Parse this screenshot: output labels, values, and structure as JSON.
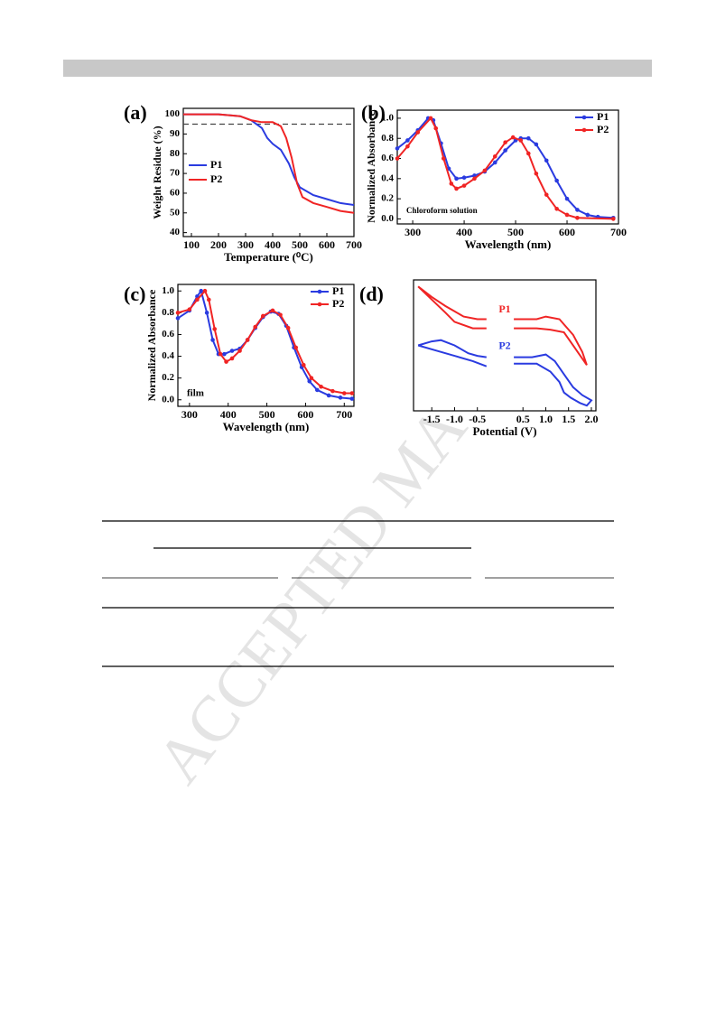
{
  "watermark": "ACCEPTED MA",
  "chart_data": [
    {
      "type": "line",
      "panel_label": "(a)",
      "xlabel": "Temperature (⁰C)",
      "ylabel": "Weight Residue (%)",
      "xlim": [
        70,
        700
      ],
      "xticks": [
        100,
        200,
        300,
        400,
        500,
        600,
        700
      ],
      "ylim": [
        38,
        103
      ],
      "yticks": [
        40,
        50,
        60,
        70,
        80,
        90,
        100
      ],
      "hline": 95,
      "legend": "center left",
      "markers": false,
      "series": [
        {
          "name": "P1",
          "color": "#2a3be0",
          "x": [
            70,
            200,
            280,
            320,
            360,
            380,
            400,
            430,
            460,
            480,
            500,
            550,
            600,
            650,
            700
          ],
          "values": [
            100,
            100,
            99,
            97,
            93,
            88,
            85,
            82,
            75,
            68,
            63,
            59,
            57,
            55,
            54
          ]
        },
        {
          "name": "P2",
          "color": "#f02424",
          "x": [
            70,
            200,
            280,
            320,
            360,
            400,
            430,
            450,
            470,
            490,
            510,
            550,
            600,
            650,
            700
          ],
          "values": [
            100,
            100,
            99,
            97,
            96,
            96,
            94,
            88,
            78,
            65,
            58,
            55,
            53,
            51,
            50
          ]
        }
      ]
    },
    {
      "type": "line",
      "panel_label": "(b)",
      "xlabel": "Wavelength (nm)",
      "ylabel": "Normalized Absorbance",
      "annotation": "Chloroform solution",
      "xlim": [
        270,
        700
      ],
      "xticks": [
        300,
        400,
        500,
        600,
        700
      ],
      "ylim": [
        -0.05,
        1.08
      ],
      "yticks": [
        {
          "value": 0,
          "label": "0.0"
        },
        0.2,
        0.4,
        0.6,
        0.8,
        {
          "value": 1,
          "label": "1.0"
        }
      ],
      "legend": "upper right",
      "markers": true,
      "series": [
        {
          "name": "P1",
          "color": "#2a3be0",
          "x": [
            270,
            290,
            310,
            330,
            340,
            355,
            370,
            385,
            400,
            420,
            440,
            460,
            480,
            500,
            510,
            525,
            540,
            560,
            580,
            600,
            620,
            640,
            660,
            690
          ],
          "values": [
            0.7,
            0.78,
            0.88,
            1.0,
            0.98,
            0.75,
            0.5,
            0.4,
            0.41,
            0.43,
            0.47,
            0.56,
            0.68,
            0.78,
            0.8,
            0.8,
            0.74,
            0.58,
            0.38,
            0.2,
            0.09,
            0.04,
            0.02,
            0.01
          ]
        },
        {
          "name": "P2",
          "color": "#f02424",
          "x": [
            270,
            290,
            310,
            335,
            345,
            360,
            375,
            385,
            400,
            420,
            440,
            460,
            480,
            495,
            510,
            525,
            540,
            560,
            580,
            600,
            620,
            690
          ],
          "values": [
            0.6,
            0.72,
            0.86,
            1.0,
            0.9,
            0.6,
            0.35,
            0.3,
            0.33,
            0.4,
            0.48,
            0.62,
            0.76,
            0.81,
            0.78,
            0.65,
            0.45,
            0.24,
            0.1,
            0.04,
            0.01,
            0
          ]
        }
      ]
    },
    {
      "type": "line",
      "panel_label": "(c)",
      "xlabel": "Wavelength (nm)",
      "ylabel": "Normalized Absorbance",
      "annotation": "film",
      "xlim": [
        270,
        725
      ],
      "xticks": [
        300,
        400,
        500,
        600,
        700
      ],
      "ylim": [
        -0.06,
        1.06
      ],
      "yticks": [
        {
          "value": 0,
          "label": "0.0"
        },
        0.2,
        0.4,
        0.6,
        0.8,
        {
          "value": 1,
          "label": "1.0"
        }
      ],
      "legend": "upper right",
      "markers": true,
      "series": [
        {
          "name": "P1",
          "color": "#2a3be0",
          "x": [
            270,
            300,
            320,
            330,
            345,
            360,
            375,
            390,
            410,
            430,
            450,
            470,
            490,
            510,
            530,
            550,
            570,
            590,
            610,
            630,
            660,
            690,
            720
          ],
          "values": [
            0.75,
            0.82,
            0.95,
            1.0,
            0.8,
            0.55,
            0.42,
            0.42,
            0.45,
            0.47,
            0.55,
            0.66,
            0.76,
            0.81,
            0.79,
            0.68,
            0.48,
            0.3,
            0.17,
            0.09,
            0.04,
            0.02,
            0.01
          ]
        },
        {
          "name": "P2",
          "color": "#f02424",
          "x": [
            270,
            300,
            320,
            340,
            350,
            365,
            380,
            395,
            410,
            430,
            450,
            470,
            490,
            515,
            535,
            555,
            575,
            595,
            615,
            640,
            670,
            700,
            720
          ],
          "values": [
            0.8,
            0.83,
            0.92,
            1.0,
            0.92,
            0.65,
            0.42,
            0.35,
            0.38,
            0.45,
            0.55,
            0.67,
            0.77,
            0.82,
            0.78,
            0.66,
            0.48,
            0.32,
            0.2,
            0.12,
            0.08,
            0.06,
            0.06
          ]
        }
      ]
    },
    {
      "type": "line",
      "panel_label": "(d)",
      "xlabel": "Potential (V)",
      "xlim": [
        -1.9,
        2.1
      ],
      "xticks": [
        -1.5,
        {
          "value": -1,
          "label": "-1.0"
        },
        -0.5,
        0.5,
        {
          "value": 1,
          "label": "1.0"
        },
        1.5,
        {
          "value": 2,
          "label": "2.0"
        }
      ],
      "ylim": [
        0,
        1
      ],
      "legend": "inline",
      "markers": false,
      "series": [
        {
          "name": "P1",
          "color": "#f02424",
          "x": [
            -1.8,
            -1.5,
            -1.2,
            -1.0,
            -0.8,
            -0.5,
            -0.3,
            null,
            0.3,
            0.8,
            1.0,
            1.3,
            1.6,
            1.8,
            1.9,
            1.7,
            1.4,
            1.1,
            0.8,
            0.3,
            null,
            -0.3,
            -0.6,
            -1.0,
            -1.2,
            -1.5,
            -1.8
          ],
          "values": [
            0.95,
            0.87,
            0.8,
            0.76,
            0.72,
            0.7,
            0.7,
            null,
            0.7,
            0.7,
            0.72,
            0.7,
            0.58,
            0.45,
            0.35,
            0.45,
            0.6,
            0.62,
            0.63,
            0.63,
            null,
            0.63,
            0.63,
            0.68,
            0.75,
            0.85,
            0.95
          ]
        },
        {
          "name": "P2",
          "color": "#2a3be0",
          "x": [
            -1.8,
            -1.5,
            -1.3,
            -1.0,
            -0.7,
            -0.5,
            -0.3,
            null,
            0.3,
            0.7,
            1.0,
            1.2,
            1.4,
            1.6,
            1.8,
            2.0,
            1.9,
            1.75,
            1.55,
            1.4,
            1.3,
            1.1,
            0.8,
            0.3,
            null,
            -0.3,
            -0.6,
            -1.0,
            -1.4,
            -1.8
          ],
          "values": [
            0.5,
            0.53,
            0.54,
            0.5,
            0.44,
            0.42,
            0.41,
            null,
            0.41,
            0.41,
            0.43,
            0.38,
            0.28,
            0.18,
            0.12,
            0.08,
            0.04,
            0.06,
            0.1,
            0.14,
            0.22,
            0.3,
            0.36,
            0.36,
            null,
            0.34,
            0.38,
            0.42,
            0.46,
            0.5
          ]
        }
      ]
    }
  ]
}
